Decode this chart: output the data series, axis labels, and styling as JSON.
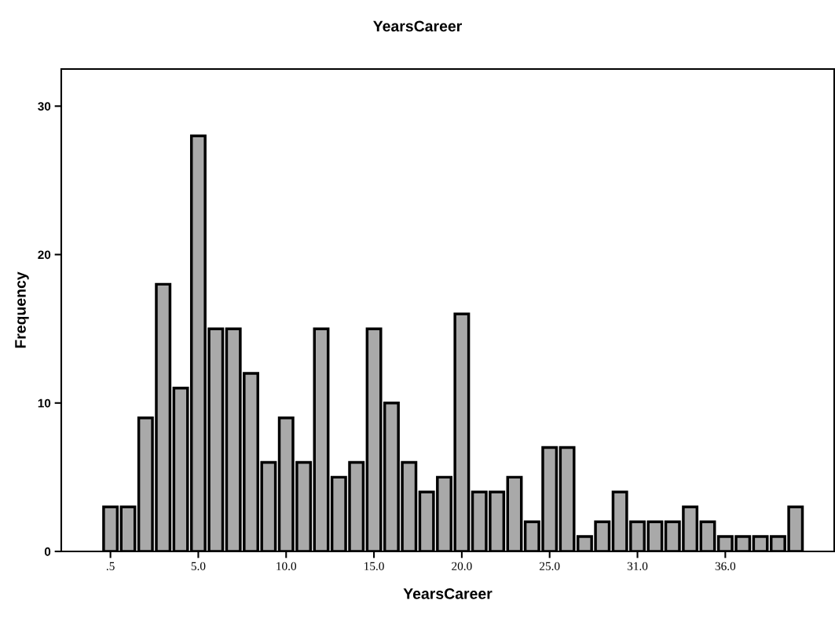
{
  "chart_data": {
    "type": "bar",
    "title": "YearsCareer",
    "xlabel": "YearsCareer",
    "ylabel": "Frequency",
    "categories": [
      ".5",
      null,
      null,
      null,
      null,
      "5.0",
      null,
      null,
      null,
      null,
      "10.0",
      null,
      null,
      null,
      null,
      "15.0",
      null,
      null,
      null,
      null,
      "20.0",
      null,
      null,
      null,
      null,
      "25.0",
      null,
      null,
      null,
      null,
      "31.0",
      null,
      null,
      null,
      null,
      "36.0",
      null,
      null,
      null,
      null
    ],
    "values": [
      3,
      3,
      9,
      18,
      11,
      28,
      15,
      15,
      12,
      6,
      9,
      6,
      15,
      5,
      6,
      15,
      10,
      6,
      4,
      5,
      16,
      4,
      4,
      5,
      2,
      7,
      7,
      1,
      2,
      4,
      2,
      2,
      2,
      3,
      2,
      1,
      1,
      1,
      1,
      3
    ],
    "color": "#a9a9a9",
    "ylim": [
      0,
      32.5
    ],
    "yticks": [
      0,
      10,
      20,
      30
    ],
    "grid": false
  }
}
